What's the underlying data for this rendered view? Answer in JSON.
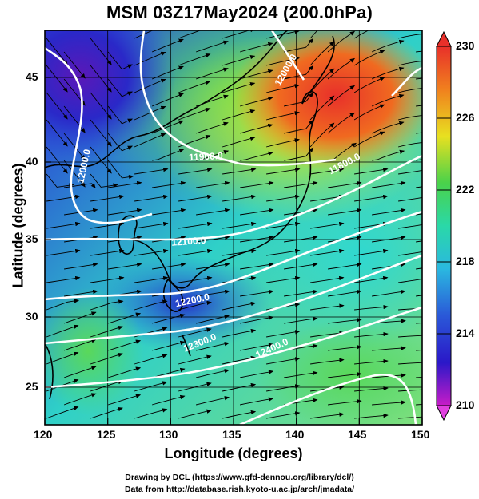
{
  "title": "MSM 03Z17May2024 (200.0hPa)",
  "xlabel": "Longitude (degrees)",
  "ylabel": "Latitude  (degrees)",
  "x_ticks": [
    "120",
    "125",
    "130",
    "135",
    "140",
    "145",
    "150"
  ],
  "y_ticks": [
    "45",
    "40",
    "35",
    "30",
    "25"
  ],
  "colorbar_ticks": [
    "230",
    "226",
    "222",
    "218",
    "214",
    "210"
  ],
  "contour_labels": [
    "12000.0",
    "11900.0",
    "11800.0",
    "12100.0",
    "12200.0",
    "12300.0",
    "12400.0"
  ],
  "credits": {
    "line1": "Drawing by DCL (https://www.gfd-dennou.org/library/dcl/)",
    "line2": "Data from http://database.rish.kyoto-u.ac.jp/arch/jmadata/"
  },
  "chart_data": {
    "type": "heatmap",
    "title": "MSM 03Z17May2024 (200.0hPa)",
    "xlabel": "Longitude (degrees)",
    "ylabel": "Latitude  (degrees)",
    "xlim": [
      120,
      150
    ],
    "ylim": [
      22.5,
      47.6
    ],
    "colorbar": {
      "min": 210,
      "max": 230,
      "ticks": [
        230,
        226,
        222,
        218,
        214,
        210
      ]
    },
    "contour_levels": [
      11800,
      11900,
      12000,
      12100,
      12200,
      12300,
      12400
    ],
    "overlays": [
      "temperature shading",
      "geopotential height contours (white)",
      "streamlines with arrows (black)",
      "coastlines",
      "lat/lon grid every 5 degrees"
    ],
    "colors": {
      "warm_max": "#e8302a",
      "cold_min": "#c81cc8",
      "contour": "#ffffff",
      "stream": "#000000"
    }
  }
}
